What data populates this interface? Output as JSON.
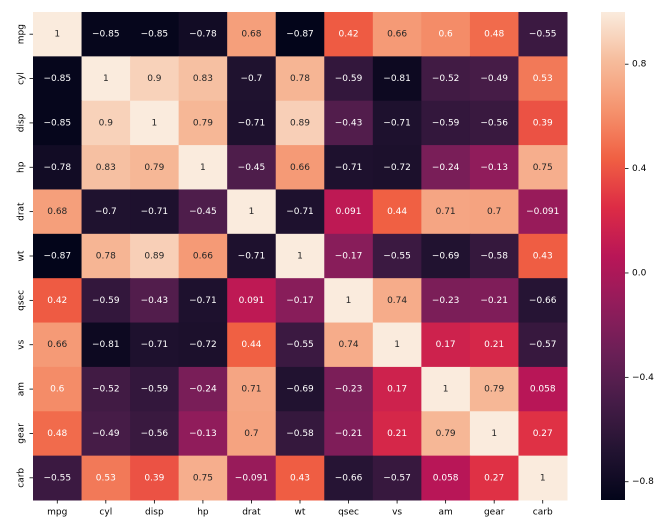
{
  "chart_data": {
    "type": "heatmap",
    "x_categories": [
      "mpg",
      "cyl",
      "disp",
      "hp",
      "drat",
      "wt",
      "qsec",
      "vs",
      "am",
      "gear",
      "carb"
    ],
    "y_categories": [
      "mpg",
      "cyl",
      "disp",
      "hp",
      "drat",
      "wt",
      "qsec",
      "vs",
      "am",
      "gear",
      "carb"
    ],
    "values": [
      [
        1,
        -0.85,
        -0.85,
        -0.78,
        0.68,
        -0.87,
        0.42,
        0.66,
        0.6,
        0.48,
        -0.55
      ],
      [
        -0.85,
        1,
        0.9,
        0.83,
        -0.7,
        0.78,
        -0.59,
        -0.81,
        -0.52,
        -0.49,
        0.53
      ],
      [
        -0.85,
        0.9,
        1,
        0.79,
        -0.71,
        0.89,
        -0.43,
        -0.71,
        -0.59,
        -0.56,
        0.39
      ],
      [
        -0.78,
        0.83,
        0.79,
        1,
        -0.45,
        0.66,
        -0.71,
        -0.72,
        -0.24,
        -0.13,
        0.75
      ],
      [
        0.68,
        -0.7,
        -0.71,
        -0.45,
        1,
        -0.71,
        0.091,
        0.44,
        0.71,
        0.7,
        -0.091
      ],
      [
        -0.87,
        0.78,
        0.89,
        0.66,
        -0.71,
        1,
        -0.17,
        -0.55,
        -0.69,
        -0.58,
        0.43
      ],
      [
        0.42,
        -0.59,
        -0.43,
        -0.71,
        0.091,
        -0.17,
        1,
        0.74,
        -0.23,
        -0.21,
        -0.66
      ],
      [
        0.66,
        -0.81,
        -0.71,
        -0.72,
        0.44,
        -0.55,
        0.74,
        1,
        0.17,
        0.21,
        -0.57
      ],
      [
        0.6,
        -0.52,
        -0.59,
        -0.24,
        0.71,
        -0.69,
        -0.23,
        0.17,
        1,
        0.79,
        0.058
      ],
      [
        0.48,
        -0.49,
        -0.56,
        -0.13,
        0.7,
        -0.58,
        -0.21,
        0.21,
        0.79,
        1,
        0.27
      ],
      [
        -0.55,
        0.53,
        0.39,
        0.75,
        -0.091,
        0.43,
        -0.66,
        -0.57,
        0.058,
        0.27,
        1
      ]
    ],
    "value_labels": [
      [
        "1",
        "−0.85",
        "−0.85",
        "−0.78",
        "0.68",
        "−0.87",
        "0.42",
        "0.66",
        "0.6",
        "0.48",
        "−0.55"
      ],
      [
        "−0.85",
        "1",
        "0.9",
        "0.83",
        "−0.7",
        "0.78",
        "−0.59",
        "−0.81",
        "−0.52",
        "−0.49",
        "0.53"
      ],
      [
        "−0.85",
        "0.9",
        "1",
        "0.79",
        "−0.71",
        "0.89",
        "−0.43",
        "−0.71",
        "−0.59",
        "−0.56",
        "0.39"
      ],
      [
        "−0.78",
        "0.83",
        "0.79",
        "1",
        "−0.45",
        "0.66",
        "−0.71",
        "−0.72",
        "−0.24",
        "−0.13",
        "0.75"
      ],
      [
        "0.68",
        "−0.7",
        "−0.71",
        "−0.45",
        "1",
        "−0.71",
        "0.091",
        "0.44",
        "0.71",
        "0.7",
        "−0.091"
      ],
      [
        "−0.87",
        "0.78",
        "0.89",
        "0.66",
        "−0.71",
        "1",
        "−0.17",
        "−0.55",
        "−0.69",
        "−0.58",
        "0.43"
      ],
      [
        "0.42",
        "−0.59",
        "−0.43",
        "−0.71",
        "0.091",
        "−0.17",
        "1",
        "0.74",
        "−0.23",
        "−0.21",
        "−0.66"
      ],
      [
        "0.66",
        "−0.81",
        "−0.71",
        "−0.72",
        "0.44",
        "−0.55",
        "0.74",
        "1",
        "0.17",
        "0.21",
        "−0.57"
      ],
      [
        "0.6",
        "−0.52",
        "−0.59",
        "−0.24",
        "0.71",
        "−0.69",
        "−0.23",
        "0.17",
        "1",
        "0.79",
        "0.058"
      ],
      [
        "0.48",
        "−0.49",
        "−0.56",
        "−0.13",
        "0.7",
        "−0.58",
        "−0.21",
        "0.21",
        "0.79",
        "1",
        "0.27"
      ],
      [
        "−0.55",
        "0.53",
        "0.39",
        "0.75",
        "−0.091",
        "0.43",
        "−0.66",
        "−0.57",
        "0.058",
        "0.27",
        "1"
      ]
    ],
    "colormap": "rocket",
    "clim": [
      -0.87,
      1
    ],
    "cticks": [
      {
        "value": -0.8,
        "label": "−0.8"
      },
      {
        "value": -0.4,
        "label": "−0.4"
      },
      {
        "value": 0,
        "label": "0.0"
      },
      0.4,
      0.8
    ]
  }
}
